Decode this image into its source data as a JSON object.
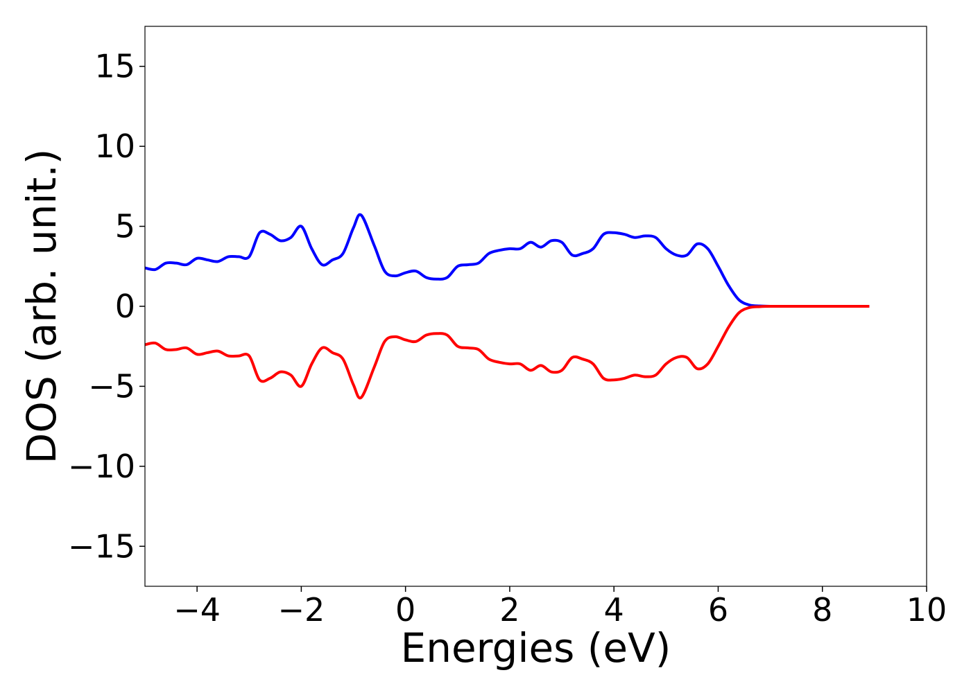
{
  "chart_data": {
    "type": "line",
    "title": "",
    "xlabel": "Energies (eV)",
    "ylabel": "DOS (arb. unit.)",
    "xlim": [
      -5,
      10
    ],
    "ylim": [
      -17.5,
      17.5
    ],
    "xticks": [
      -4,
      -2,
      0,
      2,
      4,
      6,
      8,
      10
    ],
    "xtick_labels": [
      "−4",
      "−2",
      "0",
      "2",
      "4",
      "6",
      "8",
      "10"
    ],
    "yticks": [
      15,
      10,
      5,
      0,
      -5,
      -10,
      -15
    ],
    "ytick_labels": [
      "15",
      "10",
      "5",
      "0",
      "−5",
      "−10",
      "−15"
    ],
    "grid": false,
    "legend": "none",
    "series": [
      {
        "color": "#0000ff",
        "x": [
          -5.0,
          -4.8,
          -4.6,
          -4.4,
          -4.2,
          -4.0,
          -3.8,
          -3.6,
          -3.4,
          -3.2,
          -3.0,
          -2.8,
          -2.6,
          -2.4,
          -2.2,
          -2.0,
          -1.8,
          -1.6,
          -1.4,
          -1.2,
          -1.0,
          -0.85,
          -0.6,
          -0.4,
          -0.2,
          0.0,
          0.2,
          0.4,
          0.6,
          0.8,
          1.0,
          1.2,
          1.4,
          1.6,
          1.8,
          2.0,
          2.2,
          2.4,
          2.6,
          2.8,
          3.0,
          3.2,
          3.4,
          3.6,
          3.8,
          4.0,
          4.2,
          4.4,
          4.6,
          4.8,
          5.0,
          5.2,
          5.4,
          5.6,
          5.8,
          6.0,
          6.2,
          6.4,
          6.6,
          6.8,
          7.0,
          7.5,
          8.0,
          8.5,
          8.9
        ],
        "y": [
          2.4,
          2.3,
          2.7,
          2.7,
          2.6,
          3.0,
          2.9,
          2.8,
          3.1,
          3.1,
          3.1,
          4.6,
          4.5,
          4.1,
          4.3,
          5.0,
          3.6,
          2.6,
          2.9,
          3.3,
          4.9,
          5.7,
          3.8,
          2.2,
          1.9,
          2.1,
          2.2,
          1.8,
          1.7,
          1.8,
          2.5,
          2.6,
          2.7,
          3.3,
          3.5,
          3.6,
          3.6,
          4.0,
          3.7,
          4.1,
          4.0,
          3.2,
          3.3,
          3.6,
          4.5,
          4.6,
          4.5,
          4.3,
          4.4,
          4.3,
          3.6,
          3.2,
          3.2,
          3.9,
          3.6,
          2.5,
          1.3,
          0.4,
          0.08,
          0.02,
          0.0,
          0.0,
          0.0,
          0.0,
          0.0
        ]
      },
      {
        "color": "#ff0000",
        "x": [
          -5.0,
          -4.8,
          -4.6,
          -4.4,
          -4.2,
          -4.0,
          -3.8,
          -3.6,
          -3.4,
          -3.2,
          -3.0,
          -2.8,
          -2.6,
          -2.4,
          -2.2,
          -2.0,
          -1.8,
          -1.6,
          -1.4,
          -1.2,
          -1.0,
          -0.85,
          -0.6,
          -0.4,
          -0.2,
          0.0,
          0.2,
          0.4,
          0.6,
          0.8,
          1.0,
          1.2,
          1.4,
          1.6,
          1.8,
          2.0,
          2.2,
          2.4,
          2.6,
          2.8,
          3.0,
          3.2,
          3.4,
          3.6,
          3.8,
          4.0,
          4.2,
          4.4,
          4.6,
          4.8,
          5.0,
          5.2,
          5.4,
          5.6,
          5.8,
          6.0,
          6.2,
          6.4,
          6.6,
          6.8,
          7.0,
          7.5,
          8.0,
          8.5,
          8.9
        ],
        "y": [
          -2.4,
          -2.3,
          -2.7,
          -2.7,
          -2.6,
          -3.0,
          -2.9,
          -2.8,
          -3.1,
          -3.1,
          -3.1,
          -4.6,
          -4.5,
          -4.1,
          -4.3,
          -5.0,
          -3.6,
          -2.6,
          -2.9,
          -3.3,
          -4.9,
          -5.7,
          -3.8,
          -2.2,
          -1.9,
          -2.1,
          -2.2,
          -1.8,
          -1.7,
          -1.8,
          -2.5,
          -2.6,
          -2.7,
          -3.3,
          -3.5,
          -3.6,
          -3.6,
          -4.0,
          -3.7,
          -4.1,
          -4.0,
          -3.2,
          -3.3,
          -3.6,
          -4.5,
          -4.6,
          -4.5,
          -4.3,
          -4.4,
          -4.3,
          -3.6,
          -3.2,
          -3.2,
          -3.9,
          -3.6,
          -2.5,
          -1.3,
          -0.4,
          -0.08,
          -0.02,
          0.0,
          0.0,
          0.0,
          0.0,
          0.0
        ]
      }
    ]
  }
}
